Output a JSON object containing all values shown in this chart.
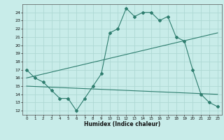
{
  "line1_x": [
    0,
    1,
    2,
    3,
    4,
    5,
    6,
    7,
    8,
    9,
    10,
    11,
    12,
    13,
    14,
    15,
    16,
    17,
    18,
    19,
    20,
    21,
    22,
    23
  ],
  "line1_y": [
    17,
    16,
    15.5,
    14.5,
    13.5,
    13.5,
    12,
    13.5,
    15,
    16.5,
    21.5,
    22,
    24.5,
    23.5,
    24,
    24,
    23,
    23.5,
    21,
    20.5,
    17,
    14,
    13,
    12.5
  ],
  "line2_x": [
    0,
    23
  ],
  "line2_y": [
    16.0,
    21.5
  ],
  "line3_x": [
    0,
    23
  ],
  "line3_y": [
    15.0,
    14.0
  ],
  "line_color": "#2e7d6e",
  "bg_color": "#c8ece9",
  "grid_color": "#aed8d4",
  "xlabel": "Humidex (Indice chaleur)",
  "ylabel_ticks": [
    12,
    13,
    14,
    15,
    16,
    17,
    18,
    19,
    20,
    21,
    22,
    23,
    24
  ],
  "xlim": [
    -0.5,
    23.5
  ],
  "ylim": [
    11.5,
    25.0
  ],
  "xticks": [
    0,
    1,
    2,
    3,
    4,
    5,
    6,
    7,
    8,
    9,
    10,
    11,
    12,
    13,
    14,
    15,
    16,
    17,
    18,
    19,
    20,
    21,
    22,
    23
  ]
}
